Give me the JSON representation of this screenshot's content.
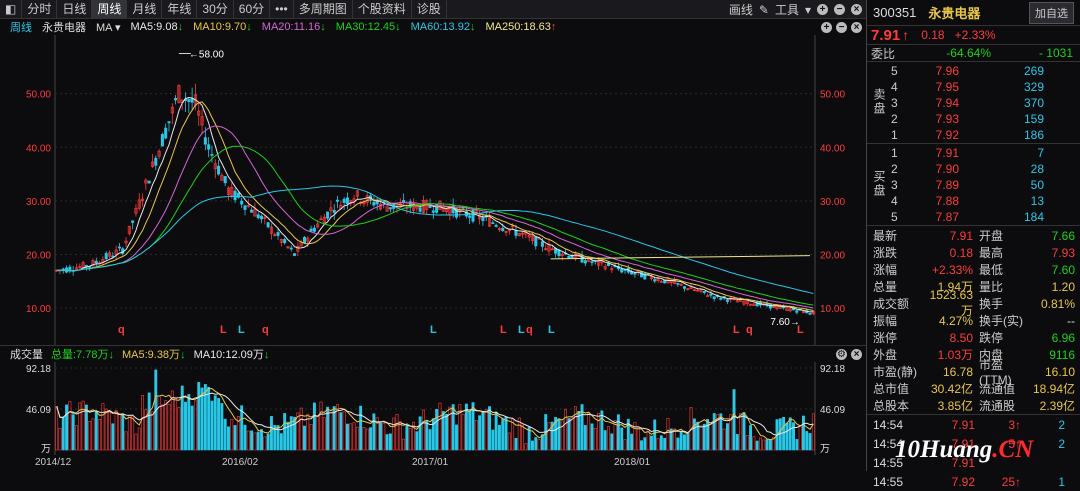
{
  "toolbar": {
    "tabs": [
      "分时",
      "日线",
      "周线",
      "月线",
      "年线",
      "30分",
      "60分",
      "•••",
      "多周期图",
      "个股资料",
      "诊股"
    ],
    "active_index": 2,
    "draw_label": "画线",
    "tools_label": "工具"
  },
  "ma_bar": {
    "period": "周线",
    "stock": "永贵电器",
    "ma_select": "MA",
    "items": [
      {
        "label": "MA5:9.08",
        "arrow": "↓",
        "color": "#e8e8e8"
      },
      {
        "label": "MA10:9.70",
        "arrow": "↓",
        "color": "#e8c64a"
      },
      {
        "label": "MA20:11.16",
        "arrow": "↓",
        "color": "#d466d4"
      },
      {
        "label": "MA30:12.45",
        "arrow": "↓",
        "color": "#19d319"
      },
      {
        "label": "MA60:13.92",
        "arrow": "↓",
        "color": "#28c8e8"
      },
      {
        "label": "MA250:18.63",
        "arrow": "↑",
        "color": "#f0e68c"
      }
    ]
  },
  "chart_data": {
    "type": "candlestick",
    "y_ticks": [
      "50.00",
      "40.00",
      "30.00",
      "20.00",
      "10.00"
    ],
    "high_label": "58.00",
    "low_label": "7.60",
    "flag_labels": [
      "q",
      "L",
      "L",
      "q",
      "L",
      "L",
      "L",
      "q",
      "L",
      "L",
      "q",
      "L"
    ],
    "vol_title": "成交量",
    "vol_items": [
      {
        "label": "总量:7.78万",
        "arrow": "↓",
        "color": "#19d319"
      },
      {
        "label": "MA5:9.38万",
        "arrow": "↓",
        "color": "#e8c64a"
      },
      {
        "label": "MA10:12.09万",
        "arrow": "↓",
        "color": "#e8e8e8"
      }
    ],
    "vol_ticks": [
      "92.18",
      "46.09",
      "万"
    ],
    "x_dates": [
      "2014/12",
      "2016/02",
      "2017/01",
      "2018/01"
    ]
  },
  "quote": {
    "code": "300351",
    "name": "永贵电器",
    "add_label": "加自选",
    "price": "7.91",
    "price_arrow": "↑",
    "change": "0.18",
    "change_pct": "+2.33%",
    "weibi_label": "委比",
    "weibi": "-64.64%",
    "weicha": "- 1031",
    "sell_label": "卖盘",
    "buy_label": "买盘",
    "sells": [
      {
        "lvl": "5",
        "price": "7.96",
        "vol": "269"
      },
      {
        "lvl": "4",
        "price": "7.95",
        "vol": "329"
      },
      {
        "lvl": "3",
        "price": "7.94",
        "vol": "370"
      },
      {
        "lvl": "2",
        "price": "7.93",
        "vol": "159"
      },
      {
        "lvl": "1",
        "price": "7.92",
        "vol": "186"
      }
    ],
    "buys": [
      {
        "lvl": "1",
        "price": "7.91",
        "vol": "7"
      },
      {
        "lvl": "2",
        "price": "7.90",
        "vol": "28"
      },
      {
        "lvl": "3",
        "price": "7.89",
        "vol": "50"
      },
      {
        "lvl": "4",
        "price": "7.88",
        "vol": "13"
      },
      {
        "lvl": "5",
        "price": "7.87",
        "vol": "184"
      }
    ],
    "stats": [
      {
        "k1": "最新",
        "v1": "7.91",
        "c1": "red",
        "k2": "开盘",
        "v2": "7.66",
        "c2": "green"
      },
      {
        "k1": "涨跌",
        "v1": "0.18",
        "c1": "red",
        "k2": "最高",
        "v2": "7.93",
        "c2": "red"
      },
      {
        "k1": "涨幅",
        "v1": "+2.33%",
        "c1": "red",
        "k2": "最低",
        "v2": "7.60",
        "c2": "green"
      },
      {
        "k1": "总量",
        "v1": "1.94万",
        "c1": "yel",
        "k2": "量比",
        "v2": "1.20",
        "c2": "yel"
      },
      {
        "k1": "成交额",
        "v1": "1523.63万",
        "c1": "yel",
        "k2": "换手",
        "v2": "0.81%",
        "c2": "yel"
      },
      {
        "k1": "振幅",
        "v1": "4.27%",
        "c1": "yel",
        "k2": "换手(实)",
        "v2": "--",
        "c2": "wht"
      },
      {
        "k1": "涨停",
        "v1": "8.50",
        "c1": "red",
        "k2": "跌停",
        "v2": "6.96",
        "c2": "green"
      },
      {
        "k1": "外盘",
        "v1": "1.03万",
        "c1": "red",
        "k2": "内盘",
        "v2": "9116",
        "c2": "green"
      },
      {
        "k1": "市盈(静)",
        "v1": "16.78",
        "c1": "yel",
        "k2": "市盈(TTM)",
        "v2": "16.10",
        "c2": "yel"
      },
      {
        "k1": "总市值",
        "v1": "30.42亿",
        "c1": "yel",
        "k2": "流通值",
        "v2": "18.94亿",
        "c2": "yel"
      },
      {
        "k1": "总股本",
        "v1": "3.85亿",
        "c1": "yel",
        "k2": "流通股",
        "v2": "2.39亿",
        "c2": "yel"
      }
    ],
    "ticks": [
      {
        "time": "14:54",
        "price": "7.91",
        "vol": "3",
        "arrow": "↑",
        "n": "2"
      },
      {
        "time": "14:54",
        "price": "7.91",
        "vol": "5",
        "arrow": "↑",
        "n": "2"
      },
      {
        "time": "14:55",
        "price": "7.91",
        "vol": "",
        "arrow": "",
        "n": ""
      },
      {
        "time": "14:55",
        "price": "7.92",
        "vol": "25",
        "arrow": "↑",
        "n": "1"
      }
    ]
  },
  "watermark": {
    "main": "10Huang",
    "suffix": ".CN"
  }
}
